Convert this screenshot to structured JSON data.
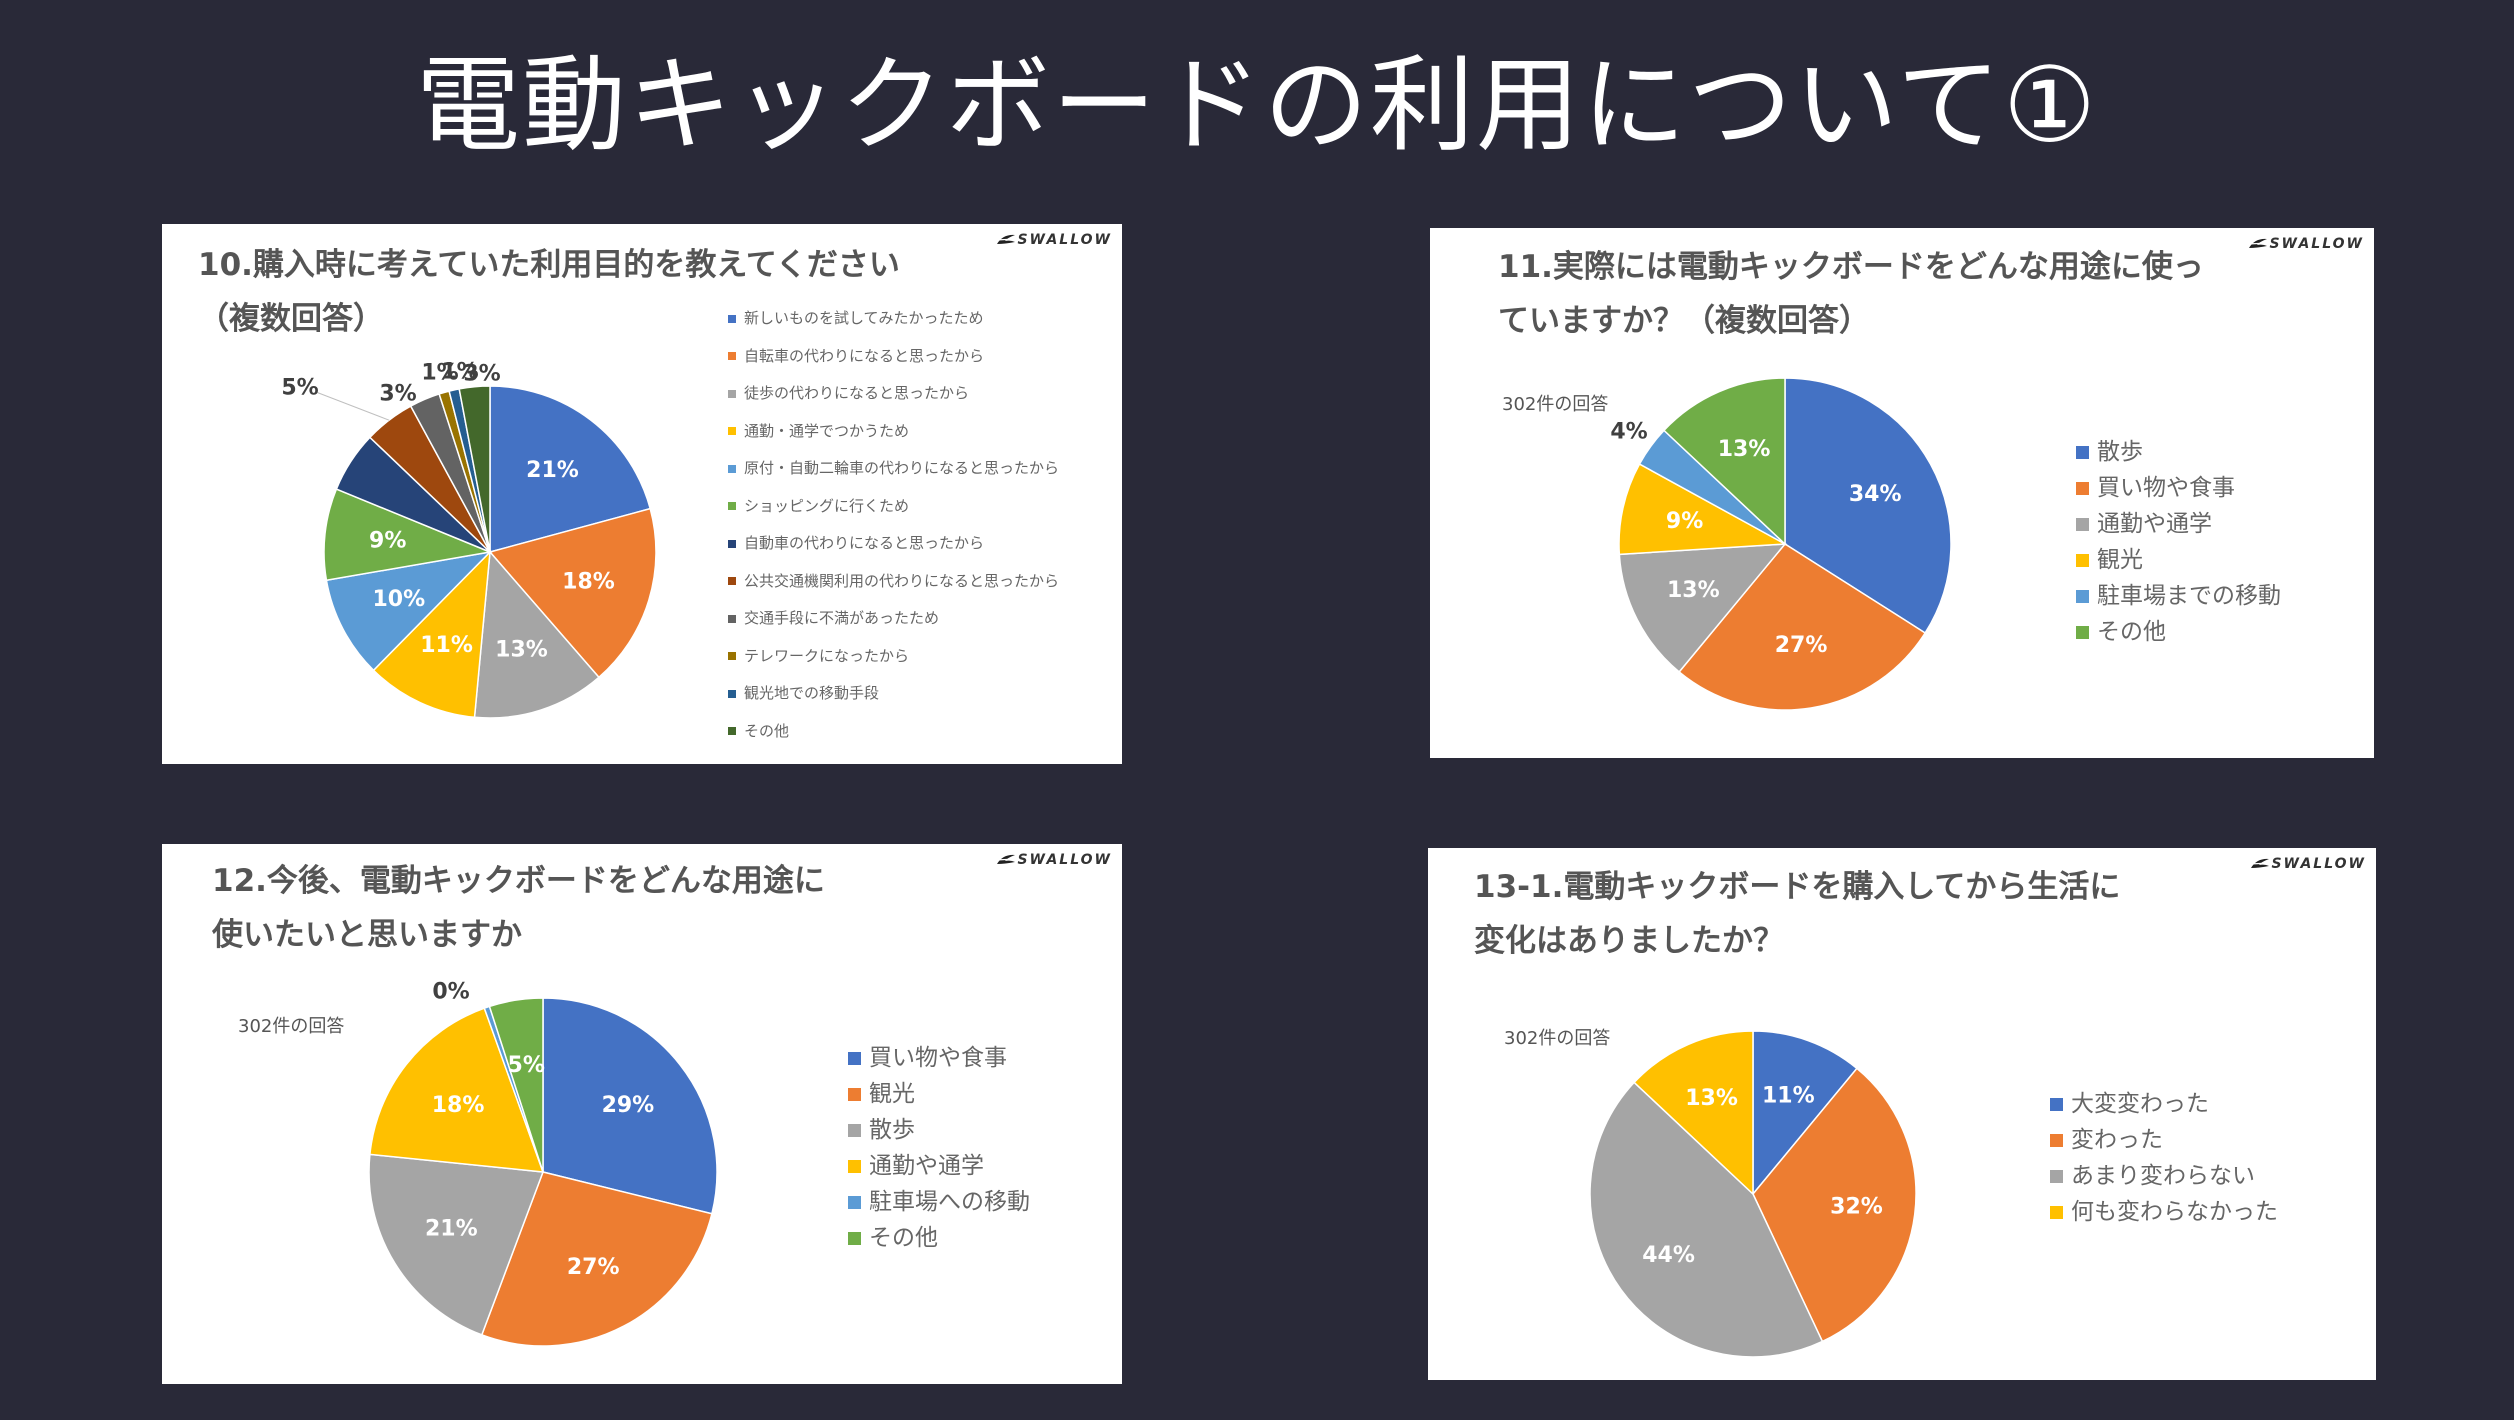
{
  "page": {
    "title": "電動キックボードの利用について①"
  },
  "brand": "SWALLOW",
  "chart_data": [
    {
      "type": "pie",
      "title": "10.購入時に考えていた利用目的を教えてください（複数回答）",
      "title_lines": [
        "10.購入時に考えていた利用目的を教えてください",
        "（複数回答）"
      ],
      "note": "",
      "legend_position": "right",
      "slices": [
        {
          "label": "新しいものを試してみたかったため",
          "value": 21,
          "color": "#4472C4",
          "data_label": "21%",
          "label_color": "#ffffff"
        },
        {
          "label": "自転車の代わりになると思ったから",
          "value": 18,
          "color": "#ED7D31",
          "data_label": "18%",
          "label_color": "#ffffff"
        },
        {
          "label": "徒歩の代わりになると思ったから",
          "value": 13,
          "color": "#A5A5A5",
          "data_label": "13%",
          "label_color": "#ffffff"
        },
        {
          "label": "通勤・通学でつかうため",
          "value": 11,
          "color": "#FFC000",
          "data_label": "11%",
          "label_color": "#ffffff"
        },
        {
          "label": "原付・自動二輪車の代わりになると思ったから",
          "value": 10,
          "color": "#5B9BD5",
          "data_label": "10%",
          "label_color": "#ffffff"
        },
        {
          "label": "ショッピングに行くため",
          "value": 9,
          "color": "#70AD47",
          "data_label": "9%",
          "label_color": "#ffffff"
        },
        {
          "label": "自動車の代わりになると思ったから",
          "value": 6,
          "color": "#264478",
          "data_label": "",
          "label_color": "#ffffff"
        },
        {
          "label": "公共交通機関利用の代わりになると思ったから",
          "value": 5,
          "color": "#9E480E",
          "data_label": "5%",
          "label_color": "#404040"
        },
        {
          "label": "交通手段に不満があったため",
          "value": 3,
          "color": "#636363",
          "data_label": "3%",
          "label_color": "#404040"
        },
        {
          "label": "テレワークになったから",
          "value": 1,
          "color": "#997300",
          "data_label": "1%",
          "label_color": "#404040"
        },
        {
          "label": "観光地での移動手段",
          "value": 1,
          "color": "#255E91",
          "data_label": "1%",
          "label_color": "#404040"
        },
        {
          "label": "その他",
          "value": 3,
          "color": "#43682B",
          "data_label": "3%",
          "label_color": "#404040"
        }
      ]
    },
    {
      "type": "pie",
      "title": "11.実際には電動キックボードをどんな用途に使っていますか？（複数回答）",
      "title_lines": [
        "11.実際には電動キックボードをどんな用途に使っ",
        "ていますか？（複数回答）"
      ],
      "note": "302件の回答",
      "legend_position": "right",
      "slices": [
        {
          "label": "散歩",
          "value": 34,
          "color": "#4472C4",
          "data_label": "34%",
          "label_color": "#ffffff"
        },
        {
          "label": "買い物や食事",
          "value": 27,
          "color": "#ED7D31",
          "data_label": "27%",
          "label_color": "#ffffff"
        },
        {
          "label": "通勤や通学",
          "value": 13,
          "color": "#A5A5A5",
          "data_label": "13%",
          "label_color": "#ffffff"
        },
        {
          "label": "観光",
          "value": 9,
          "color": "#FFC000",
          "data_label": "9%",
          "label_color": "#ffffff"
        },
        {
          "label": "駐車場までの移動",
          "value": 4,
          "color": "#5B9BD5",
          "data_label": "4%",
          "label_color": "#404040"
        },
        {
          "label": "その他",
          "value": 13,
          "color": "#70AD47",
          "data_label": "13%",
          "label_color": "#ffffff"
        }
      ]
    },
    {
      "type": "pie",
      "title": "12.今後、電動キックボードをどんな用途に使いたいと思いますか",
      "title_lines": [
        "12.今後、電動キックボードをどんな用途に",
        "使いたいと思いますか"
      ],
      "note": "302件の回答",
      "legend_position": "right",
      "slices": [
        {
          "label": "買い物や食事",
          "value": 29,
          "color": "#4472C4",
          "data_label": "29%",
          "label_color": "#ffffff"
        },
        {
          "label": "観光",
          "value": 27,
          "color": "#ED7D31",
          "data_label": "27%",
          "label_color": "#ffffff"
        },
        {
          "label": "散歩",
          "value": 21,
          "color": "#A5A5A5",
          "data_label": "21%",
          "label_color": "#ffffff"
        },
        {
          "label": "通勤や通学",
          "value": 18,
          "color": "#FFC000",
          "data_label": "18%",
          "label_color": "#ffffff"
        },
        {
          "label": "駐車場への移動",
          "value": 0.5,
          "color": "#5B9BD5",
          "data_label": "0%",
          "label_color": "#404040"
        },
        {
          "label": "その他",
          "value": 5,
          "color": "#70AD47",
          "data_label": "5%",
          "label_color": "#ffffff"
        }
      ]
    },
    {
      "type": "pie",
      "title": "13-1.電動キックボードを購入してから生活に変化はありましたか？",
      "title_lines": [
        "13-1.電動キックボードを購入してから生活に",
        "変化はありましたか？"
      ],
      "note": "302件の回答",
      "legend_position": "right",
      "slices": [
        {
          "label": "大変変わった",
          "value": 11,
          "color": "#4472C4",
          "data_label": "11%",
          "label_color": "#ffffff"
        },
        {
          "label": "変わった",
          "value": 32,
          "color": "#ED7D31",
          "data_label": "32%",
          "label_color": "#ffffff"
        },
        {
          "label": "あまり変わらない",
          "value": 44,
          "color": "#A5A5A5",
          "data_label": "44%",
          "label_color": "#ffffff"
        },
        {
          "label": "何も変わらなかった",
          "value": 13,
          "color": "#FFC000",
          "data_label": "13%",
          "label_color": "#ffffff"
        }
      ]
    }
  ]
}
